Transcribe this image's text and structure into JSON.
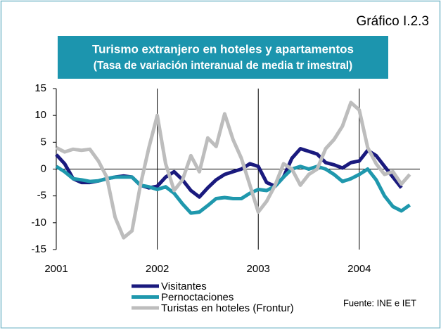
{
  "chart_data": {
    "type": "line",
    "figure_label": "Gráfico I.2.3",
    "title": "Turismo extranjero en hoteles y apartamentos",
    "subtitle": "(Tasa de variación interanual de media tr imestral)",
    "source": "Fuente: INE e IET",
    "x": [
      2001,
      2001.083,
      2001.167,
      2001.25,
      2001.333,
      2001.417,
      2001.5,
      2001.583,
      2001.667,
      2001.75,
      2001.833,
      2001.917,
      2002,
      2002.083,
      2002.167,
      2002.25,
      2002.333,
      2002.417,
      2002.5,
      2002.583,
      2002.667,
      2002.75,
      2002.833,
      2002.917,
      2003,
      2003.083,
      2003.167,
      2003.25,
      2003.333,
      2003.417,
      2003.5,
      2003.583,
      2003.667,
      2003.75,
      2003.833,
      2003.917,
      2004,
      2004.083,
      2004.167,
      2004.25,
      2004.333,
      2004.417,
      2004.5
    ],
    "series": [
      {
        "name": "Visitantes",
        "color": "#1a1a7e",
        "values": [
          2.7,
          1,
          -1.8,
          -2.5,
          -2.5,
          -2.2,
          -1.8,
          -1.5,
          -1.3,
          -1.5,
          -3,
          -3.5,
          -3.2,
          -1.5,
          -0.5,
          -2,
          -4,
          -5.2,
          -3.5,
          -2,
          -1,
          -0.5,
          0,
          1,
          0.5,
          -2.5,
          -3.2,
          -1.5,
          2,
          3.8,
          3.3,
          2.8,
          1.2,
          0.8,
          0.2,
          1.2,
          1.5,
          3.5,
          2.5,
          0.5,
          -1.5,
          -3.5,
          null
        ]
      },
      {
        "name": "Pernoctaciones",
        "color": "#1f98ad",
        "values": [
          0.5,
          -0.5,
          -1.8,
          -2,
          -2.3,
          -2.2,
          -1.8,
          -1.5,
          -1.5,
          -1.5,
          -3,
          -3.3,
          -3.8,
          -3.3,
          -4.5,
          -6.5,
          -8.2,
          -8,
          -6.8,
          -5.5,
          -5.3,
          -5.5,
          -5.5,
          -4.5,
          -3.8,
          -4,
          -3.2,
          -1.5,
          0,
          0.5,
          0,
          0.5,
          0,
          -1,
          -2.3,
          -1.8,
          -1,
          0,
          -2,
          -5,
          -7,
          -7.8,
          -6.7
        ]
      },
      {
        "name": "Turistas en hoteles (Frontur)",
        "color": "#bdbdbd",
        "values": [
          4,
          3.2,
          3.7,
          3.5,
          3.7,
          1.5,
          -1.5,
          -9,
          -12.8,
          -11.5,
          -3,
          4,
          10,
          1,
          -4,
          -2,
          2.5,
          -0.5,
          5.8,
          4.2,
          10.3,
          5.5,
          2,
          -3,
          -8,
          -6,
          -3,
          1,
          0,
          -3,
          -1,
          0,
          3.8,
          5.5,
          8,
          12.4,
          11,
          4,
          1,
          -1,
          -0.5,
          -2.8,
          -1
        ]
      }
    ],
    "xlim": [
      2001,
      2004.6
    ],
    "xticks": [
      2001,
      2002,
      2003,
      2004
    ],
    "ylim": [
      -15,
      15
    ],
    "yticks": [
      -15,
      -10,
      -5,
      0,
      5,
      10,
      15
    ]
  }
}
